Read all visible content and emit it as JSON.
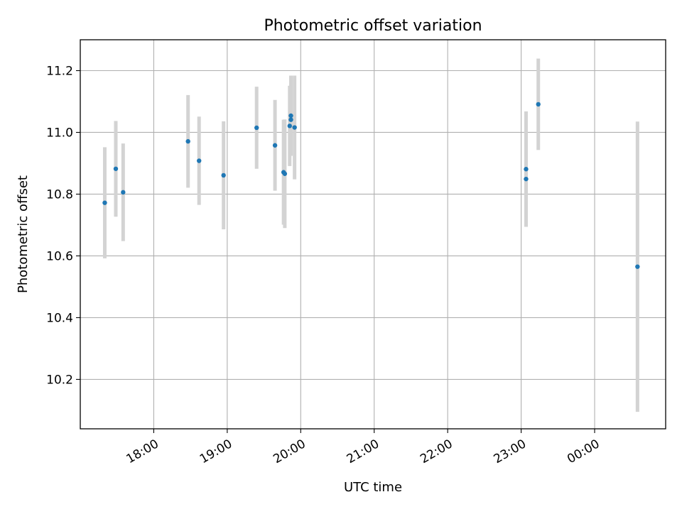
{
  "chart_data": {
    "type": "scatter",
    "title": "Photometric offset variation",
    "xlabel": "UTC time",
    "ylabel": "Photometric offset",
    "x_ticks": [
      "18:00",
      "19:00",
      "20:00",
      "21:00",
      "22:00",
      "23:00",
      "00:00"
    ],
    "y_ticks": [
      "10.2",
      "10.4",
      "10.6",
      "10.8",
      "11.0",
      "11.2"
    ],
    "x_axis": {
      "kind": "time",
      "range": [
        "17:00",
        "00:58"
      ],
      "tick_values": [
        "18:00",
        "19:00",
        "20:00",
        "21:00",
        "22:00",
        "23:00",
        "00:00"
      ]
    },
    "ylim": [
      10.04,
      11.3
    ],
    "grid": true,
    "series": [
      {
        "marker_color": "#1f77b4",
        "errorbar_color": "#d3d3d3",
        "points": [
          {
            "time": "17:20",
            "y": 10.772,
            "err": 0.18
          },
          {
            "time": "17:29",
            "y": 10.882,
            "err": 0.155
          },
          {
            "time": "17:35",
            "y": 10.806,
            "err": 0.158
          },
          {
            "time": "18:28",
            "y": 10.971,
            "err": 0.15
          },
          {
            "time": "18:37",
            "y": 10.908,
            "err": 0.143
          },
          {
            "time": "18:57",
            "y": 10.861,
            "err": 0.175
          },
          {
            "time": "19:24",
            "y": 11.015,
            "err": 0.133
          },
          {
            "time": "19:39",
            "y": 10.958,
            "err": 0.147
          },
          {
            "time": "19:46",
            "y": 10.871,
            "err": 0.17
          },
          {
            "time": "19:47",
            "y": 10.866,
            "err": 0.176
          },
          {
            "time": "19:51",
            "y": 11.021,
            "err": 0.13
          },
          {
            "time": "19:52",
            "y": 11.041,
            "err": 0.11
          },
          {
            "time": "19:52",
            "y": 11.054,
            "err": 0.13
          },
          {
            "time": "19:55",
            "y": 11.016,
            "err": 0.168
          },
          {
            "time": "23:04",
            "y": 10.881,
            "err": 0.187
          },
          {
            "time": "23:04",
            "y": 10.849,
            "err": 0.15
          },
          {
            "time": "23:14",
            "y": 11.091,
            "err": 0.148
          },
          {
            "time": "00:35",
            "y": 10.565,
            "err": 0.47
          }
        ]
      }
    ]
  }
}
